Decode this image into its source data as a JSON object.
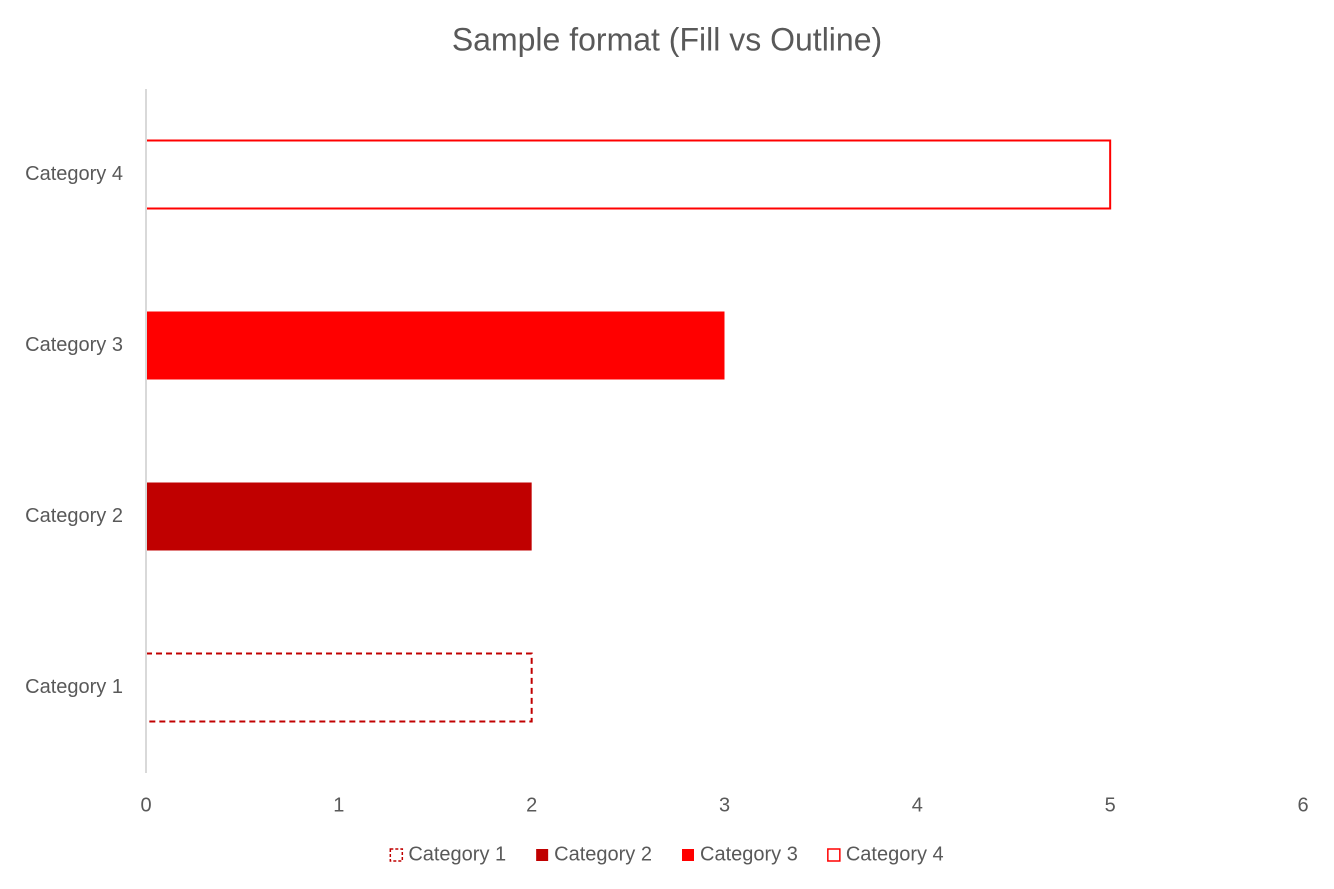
{
  "chart_data": {
    "type": "hbar",
    "title": "Sample format (Fill vs Outline)",
    "categories": [
      "Category 1",
      "Category 2",
      "Category 3",
      "Category 4"
    ],
    "values": [
      2,
      2,
      3,
      5
    ],
    "colors": [
      "#c00000",
      "#c00000",
      "#ff0000",
      "#ff0000"
    ],
    "styles": [
      "dashed-outline",
      "fill",
      "fill",
      "outline"
    ],
    "xlim": [
      0,
      6
    ],
    "xticks": [
      0,
      1,
      2,
      3,
      4,
      5,
      6
    ],
    "grid": false,
    "legend": "bottom"
  }
}
